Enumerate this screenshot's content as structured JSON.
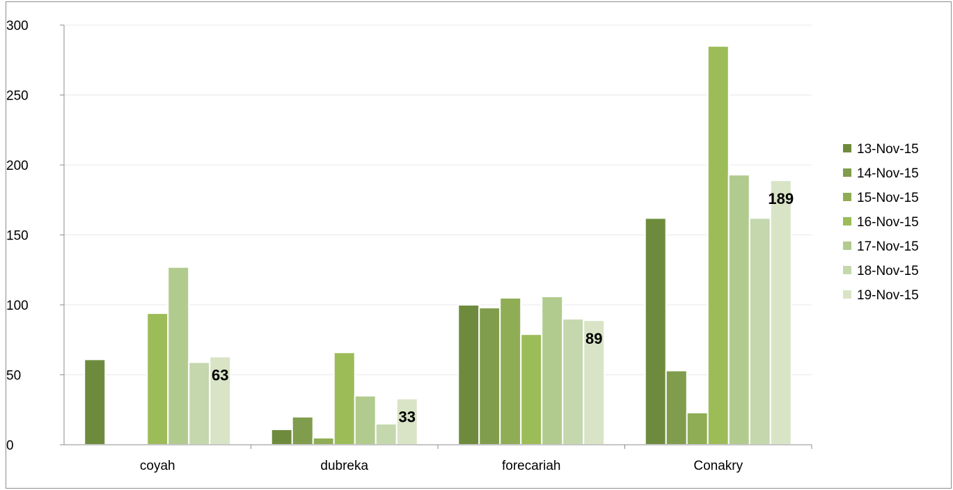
{
  "chart_data": {
    "type": "bar",
    "categories": [
      "coyah",
      "dubreka",
      "forecariah",
      "Conakry"
    ],
    "series": [
      {
        "name": "13-Nov-15",
        "color": "#6e8b3d",
        "values": [
          61,
          11,
          100,
          162
        ]
      },
      {
        "name": "14-Nov-15",
        "color": "#7f9d4c",
        "values": [
          0,
          20,
          98,
          53
        ]
      },
      {
        "name": "15-Nov-15",
        "color": "#8fad55",
        "values": [
          0,
          5,
          105,
          23
        ]
      },
      {
        "name": "16-Nov-15",
        "color": "#9cbc58",
        "values": [
          94,
          66,
          79,
          285
        ]
      },
      {
        "name": "17-Nov-15",
        "color": "#b1cb8e",
        "values": [
          127,
          35,
          106,
          193
        ]
      },
      {
        "name": "18-Nov-15",
        "color": "#c4d7ad",
        "values": [
          59,
          15,
          90,
          162
        ]
      },
      {
        "name": "19-Nov-15",
        "color": "#d9e4c7",
        "values": [
          63,
          33,
          89,
          189
        ]
      }
    ],
    "data_labels": [
      {
        "series": "19-Nov-15",
        "category": "coyah",
        "text": "63"
      },
      {
        "series": "19-Nov-15",
        "category": "dubreka",
        "text": "33"
      },
      {
        "series": "19-Nov-15",
        "category": "forecariah",
        "text": "89"
      },
      {
        "series": "19-Nov-15",
        "category": "Conakry",
        "text": "189"
      }
    ],
    "ylim": [
      0,
      300
    ],
    "yticks": [
      "0",
      "50",
      "100",
      "150",
      "200",
      "250",
      "300"
    ],
    "title": "",
    "xlabel": "",
    "ylabel": "",
    "grid": true,
    "legend_position": "right"
  }
}
